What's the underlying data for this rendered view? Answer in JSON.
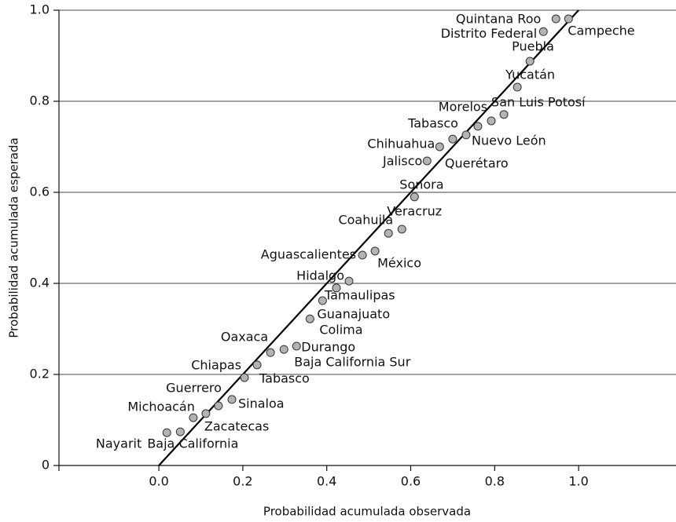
{
  "chart_data": {
    "type": "scatter",
    "x_label": "Probabilidad acumulada observada",
    "y_label": "Probabilidad acumulada esperada",
    "labels": [
      "Nayarit",
      "Baja California",
      "Michoacán",
      "Zacatecas",
      "Guerrero",
      "Sinaloa",
      "Tabasco",
      "Chiapas",
      "Oaxaca",
      "Baja California Sur",
      "Durango",
      "Colima",
      "Guanajuato",
      "Tamaulipas",
      "Hidalgo",
      "Aguascalientes",
      "México",
      "Coahuila",
      "Veracruz",
      "Sonora",
      "Jalisco",
      "Chihuahua",
      "Querétaro",
      "Nuevo León",
      "Tabasco",
      "Morelos",
      "San Luis Potosí",
      "Yucatán",
      "Puebla",
      "Distrito Federal",
      "Quintana Roo",
      "Campeche"
    ],
    "x": [
      0.019,
      0.051,
      0.082,
      0.112,
      0.142,
      0.174,
      0.204,
      0.234,
      0.266,
      0.298,
      0.328,
      0.36,
      0.39,
      0.423,
      0.453,
      0.485,
      0.515,
      0.547,
      0.579,
      0.609,
      0.639,
      0.669,
      0.7,
      0.732,
      0.76,
      0.792,
      0.822,
      0.854,
      0.884,
      0.916,
      0.946,
      0.976
    ],
    "values": [
      0.072,
      0.074,
      0.105,
      0.114,
      0.131,
      0.145,
      0.193,
      0.221,
      0.248,
      0.255,
      0.262,
      0.322,
      0.362,
      0.39,
      0.405,
      0.462,
      0.471,
      0.51,
      0.519,
      0.59,
      0.669,
      0.7,
      0.717,
      0.726,
      0.745,
      0.757,
      0.771,
      0.831,
      0.888,
      0.953,
      0.981,
      0.981
    ],
    "color": "#b3b3b3",
    "reference_line": {
      "x": [
        0,
        1
      ],
      "y": [
        0,
        1
      ]
    },
    "xlim": [
      -0.238,
      1.232
    ],
    "ylim": [
      0,
      1
    ],
    "xticks": [
      {
        "value": 0,
        "label": "0.0"
      },
      0.2,
      0.4,
      0.6,
      0.8,
      {
        "value": 1,
        "label": "1.0"
      }
    ],
    "yticks": [
      0,
      0.2,
      0.4,
      0.6,
      0.8,
      {
        "value": 1,
        "label": "1.0"
      }
    ],
    "grid": "y"
  }
}
